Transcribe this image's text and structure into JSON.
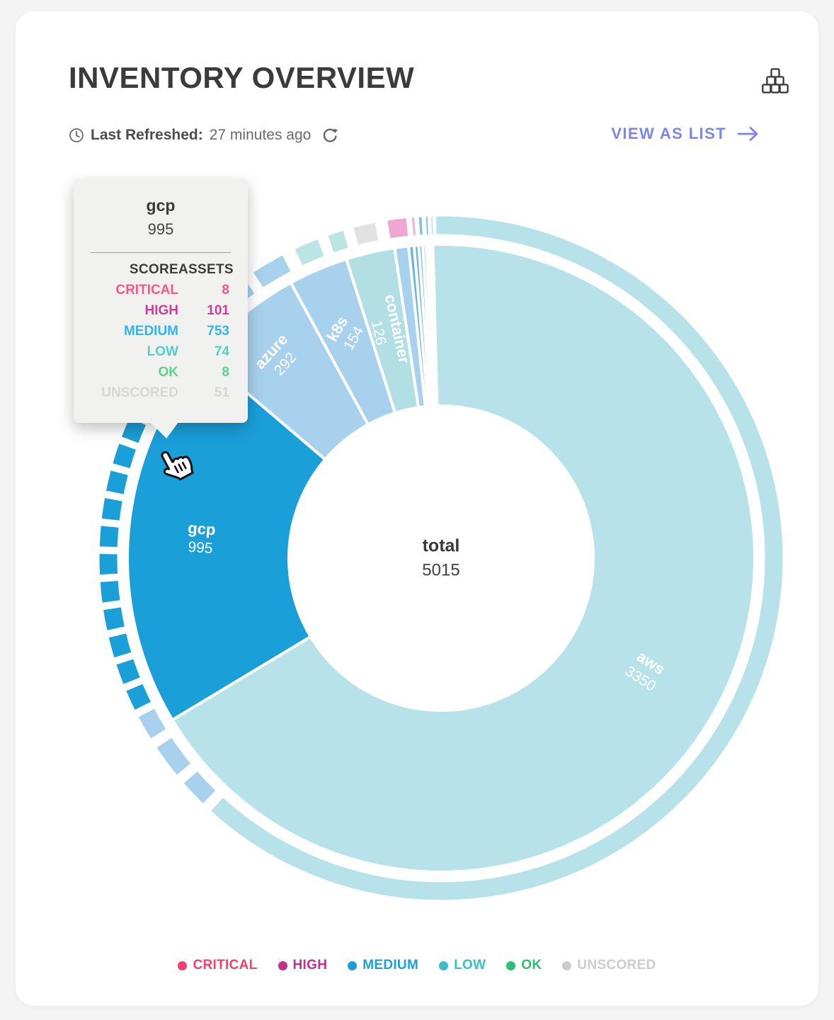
{
  "header": {
    "title": "INVENTORY OVERVIEW",
    "refresh": {
      "label": "Last Refreshed:",
      "value": "27 minutes ago"
    },
    "view_as_list": "VIEW AS LIST"
  },
  "center": {
    "label": "total",
    "value": "5015"
  },
  "tooltip": {
    "title": "gcp",
    "value": "995",
    "score_header": "SCORE",
    "assets_header": "ASSETS",
    "rows": [
      {
        "label": "CRITICAL",
        "value": "8",
        "color": "#f7578b"
      },
      {
        "label": "HIGH",
        "value": "101",
        "color": "#cb3f9b"
      },
      {
        "label": "MEDIUM",
        "value": "753",
        "color": "#35b3ea"
      },
      {
        "label": "LOW",
        "value": "74",
        "color": "#55cec7"
      },
      {
        "label": "OK",
        "value": "8",
        "color": "#5ad490"
      },
      {
        "label": "UNSCORED",
        "value": "51",
        "color": "#d6d6d6"
      }
    ]
  },
  "legend": [
    {
      "label": "CRITICAL",
      "color": "#f23f6e"
    },
    {
      "label": "HIGH",
      "color": "#c2308f"
    },
    {
      "label": "MEDIUM",
      "color": "#1b9fdb"
    },
    {
      "label": "LOW",
      "color": "#38c0c6"
    },
    {
      "label": "OK",
      "color": "#2ebd74"
    },
    {
      "label": "UNSCORED",
      "color": "#cccccc"
    }
  ],
  "chart_data": {
    "type": "sunburst",
    "title": "Inventory Overview by provider",
    "total": 5015,
    "start_angle_deg": -1.5,
    "direction": "clockwise",
    "center_label": "total",
    "segments": [
      {
        "name": "aws",
        "value": 3350,
        "color": "#b7e2e9",
        "label": {
          "rotation": 33,
          "radius": 330
        }
      },
      {
        "name": "gcp",
        "value": 995,
        "color": "#1a9fd9",
        "highlighted": true,
        "label": {
          "rotation": 4,
          "radius": 340
        }
      },
      {
        "name": "azure",
        "value": 292,
        "color": "#a8d1ee",
        "label": {
          "rotation": -48,
          "radius": 365
        }
      },
      {
        "name": "k8s",
        "value": 154,
        "color": "#a8d1ee",
        "label": {
          "rotation": -60,
          "radius": 345
        }
      },
      {
        "name": "container",
        "value": 126,
        "color": "#b2dfe3",
        "label": {
          "rotation": 78,
          "radius": 330
        }
      },
      {
        "name": "",
        "value": 36,
        "color": "#a8d1ee"
      },
      {
        "name": "",
        "value": 14,
        "color": "#6ab5e5"
      },
      {
        "name": "",
        "value": 12,
        "color": "#6ab5e5"
      },
      {
        "name": "",
        "value": 10,
        "color": "#6ab5e5"
      },
      {
        "name": "",
        "value": 9,
        "color": "#a8d1ee"
      },
      {
        "name": "",
        "value": 7,
        "color": "#b7e2e9"
      },
      {
        "name": "",
        "value": 6,
        "color": "#cfe3f4"
      },
      {
        "name": "",
        "value": 4,
        "color": "#e9cade"
      }
    ],
    "hovered_segment": "gcp",
    "hovered_breakdown": {
      "CRITICAL": 8,
      "HIGH": 101,
      "MEDIUM": 753,
      "LOW": 74,
      "OK": 8,
      "UNSCORED": 51
    },
    "outer_ring": {
      "segments": [
        {
          "start": -1,
          "end": 222.5,
          "color": "#b7e2e9"
        },
        {
          "start": 224,
          "end": 229,
          "color": "#a8d1ee"
        },
        {
          "start": 230.5,
          "end": 236.5,
          "color": "#a8d1ee"
        },
        {
          "start": 238,
          "end": 242.5,
          "color": "#a8d1ee"
        },
        {
          "start": 310.5,
          "end": 317,
          "color": "#a8d1ee"
        },
        {
          "start": 318.5,
          "end": 325,
          "color": "#a8d1ee"
        },
        {
          "start": 326.5,
          "end": 332.5,
          "color": "#a8d1ee"
        },
        {
          "start": 334.5,
          "end": 339,
          "color": "#bce4e2"
        },
        {
          "start": 340.5,
          "end": 343.5,
          "color": "#bce4e2"
        },
        {
          "start": 345,
          "end": 349,
          "color": "#e2e2e2"
        },
        {
          "start": 350.8,
          "end": 354.3,
          "color": "#eea7d1"
        },
        {
          "start": 354.9,
          "end": 355.7,
          "color": "#edbcda"
        },
        {
          "start": 356.1,
          "end": 356.9,
          "color": "#7fc0e8"
        },
        {
          "start": 357.3,
          "end": 357.9,
          "color": "#7fc0e8"
        },
        {
          "start": 358.2,
          "end": 358.7,
          "color": "#a8d1ee"
        }
      ],
      "dashes": {
        "start": 243.5,
        "end": 309.5,
        "count": 14,
        "color": "#1a9fd9"
      }
    }
  }
}
